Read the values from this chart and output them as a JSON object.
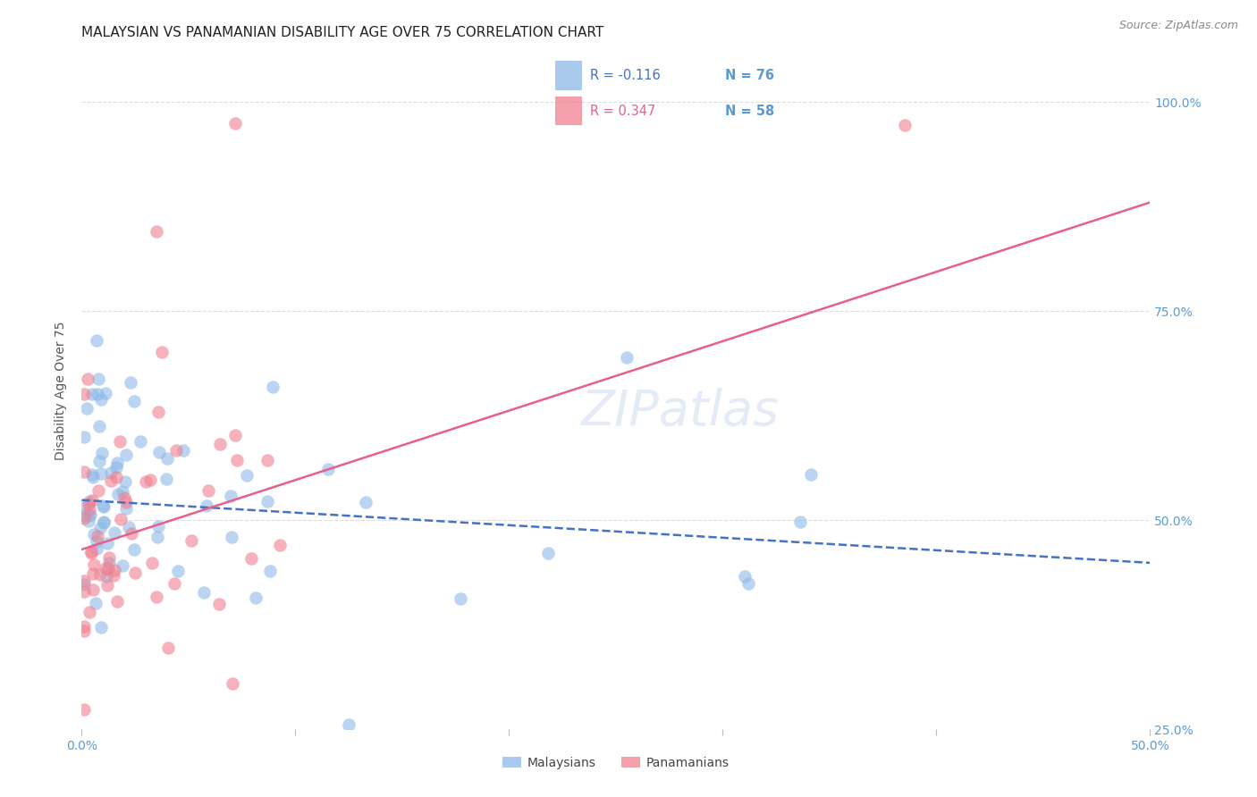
{
  "title": "MALAYSIAN VS PANAMANIAN DISABILITY AGE OVER 75 CORRELATION CHART",
  "source": "Source: ZipAtlas.com",
  "ylabel": "Disability Age Over 75",
  "xlim": [
    0.0,
    0.5
  ],
  "ylim": [
    0.3,
    1.05
  ],
  "xticks": [
    0.0,
    0.1,
    0.2,
    0.3,
    0.4,
    0.5
  ],
  "xtick_labels": [
    "0.0%",
    "",
    "",
    "",
    "",
    "50.0%"
  ],
  "ytick_labels": [
    "25.0%",
    "50.0%",
    "75.0%",
    "100.0%"
  ],
  "yticks": [
    0.25,
    0.5,
    0.75,
    1.0
  ],
  "legend_r_blue": "R = -0.116",
  "legend_n_blue": "N = 76",
  "legend_r_pink": "R = 0.347",
  "legend_n_pink": "N = 58",
  "color_blue": "#8DB8E8",
  "color_pink": "#F08090",
  "color_blue_line": "#4472C4",
  "color_pink_line": "#E8608A",
  "color_axis_labels": "#5B9BD5",
  "background_color": "#FFFFFF",
  "grid_color": "#DDDDDD",
  "title_fontsize": 11,
  "axis_label_fontsize": 10,
  "tick_label_fontsize": 10,
  "blue_line_x": [
    0.0,
    0.5
  ],
  "blue_line_y": [
    0.524,
    0.449
  ],
  "pink_line_x": [
    0.0,
    0.5
  ],
  "pink_line_y": [
    0.465,
    0.88
  ]
}
